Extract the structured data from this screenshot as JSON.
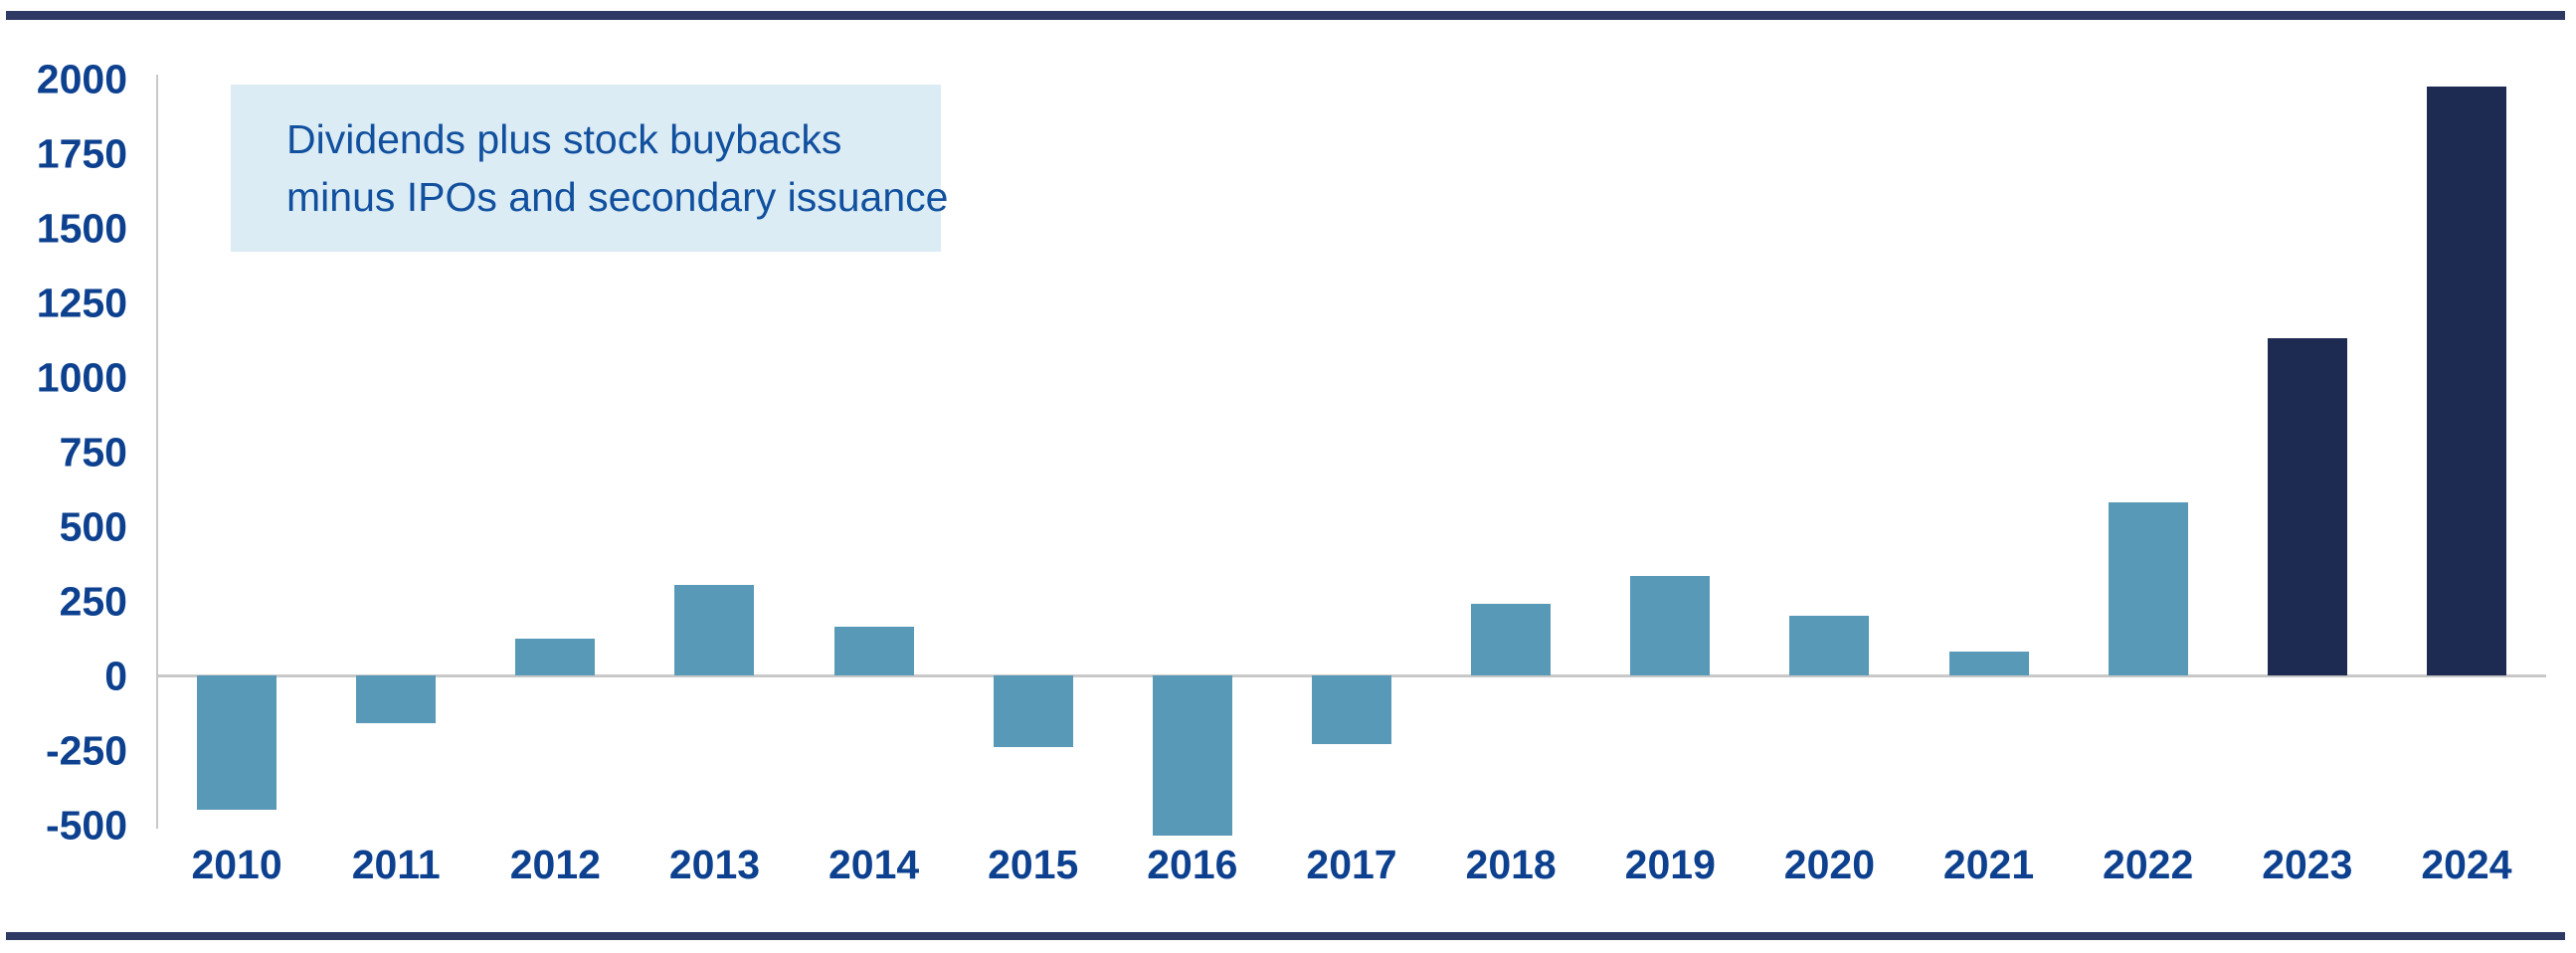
{
  "page": {
    "background": "#ffffff",
    "rule_color": "#2e3a63"
  },
  "annotation": {
    "line1": "Dividends plus stock buybacks",
    "line2": "minus IPOs and secondary issuance",
    "bg_color": "#dcecf5",
    "text_color": "#11509e"
  },
  "chart_data": {
    "type": "bar",
    "title": "",
    "xlabel": "",
    "ylabel": "",
    "categories": [
      "2010",
      "2011",
      "2012",
      "2013",
      "2014",
      "2015",
      "2016",
      "2017",
      "2018",
      "2019",
      "2020",
      "2021",
      "2022",
      "2023",
      "2024"
    ],
    "values": [
      -450,
      -160,
      125,
      305,
      165,
      -240,
      -535,
      -230,
      240,
      335,
      200,
      80,
      580,
      1130,
      1975
    ],
    "bar_colors": [
      "#5999b8",
      "#5999b8",
      "#5999b8",
      "#5999b8",
      "#5999b8",
      "#5999b8",
      "#5999b8",
      "#5999b8",
      "#5999b8",
      "#5999b8",
      "#5999b8",
      "#5999b8",
      "#5999b8",
      "#1d2b52",
      "#1d2b52"
    ],
    "default_bar_color": "#5999b8",
    "highlight_bar_color": "#1d2b52",
    "highlight_categories": [
      "2023",
      "2024"
    ],
    "ylim": [
      -500,
      2000
    ],
    "yticks": [
      2000,
      1750,
      1500,
      1250,
      1000,
      750,
      500,
      250,
      0,
      -250,
      -500
    ],
    "grid": "zero-baseline-only",
    "legend": "none",
    "axis_line_color": "#c8c8c8",
    "tick_label_color": "#0d418f"
  }
}
